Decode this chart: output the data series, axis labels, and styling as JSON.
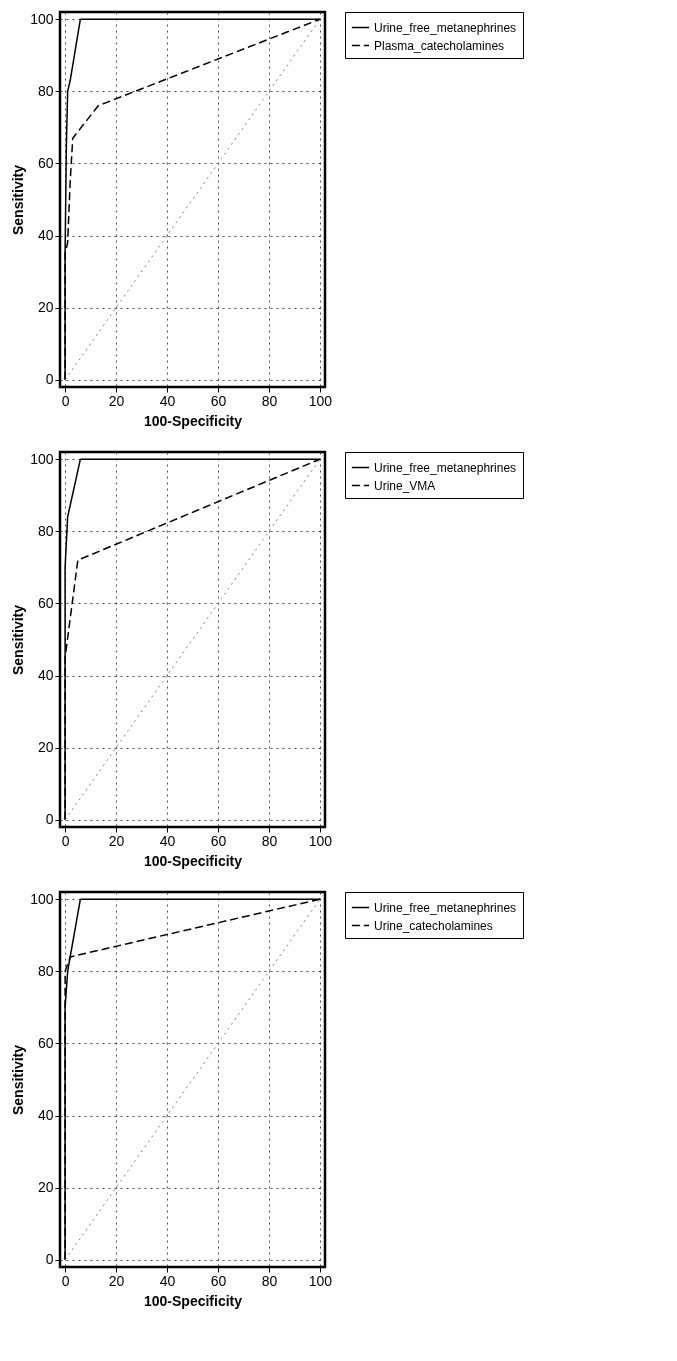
{
  "chart_data": [
    {
      "type": "line",
      "xlabel": "100-Specificity",
      "ylabel": "Sensitivity",
      "xlim": [
        -2,
        102
      ],
      "ylim": [
        -2,
        102
      ],
      "xticks": [
        0,
        20,
        40,
        60,
        80,
        100
      ],
      "yticks": [
        0,
        20,
        40,
        60,
        80,
        100
      ],
      "grid": true,
      "legend": "right",
      "series": [
        {
          "name": "Urine_free_metanephrines",
          "color": "#000000",
          "line_style": "solid",
          "x": [
            0,
            0,
            0.5,
            1,
            2,
            6,
            100
          ],
          "values": [
            0,
            35,
            65,
            80,
            83,
            100,
            100
          ]
        },
        {
          "name": "Plasma_catecholamines",
          "color": "#000000",
          "line_style": "dashed",
          "x": [
            0,
            0,
            1,
            2,
            3,
            13,
            100
          ],
          "values": [
            0,
            35,
            38,
            55,
            67,
            76,
            100
          ]
        },
        {
          "color": "#808080",
          "line_style": "dotted",
          "x": [
            0,
            100
          ],
          "values": [
            0,
            100
          ]
        }
      ]
    },
    {
      "type": "line",
      "xlabel": "100-Specificity",
      "ylabel": "Sensitivity",
      "xlim": [
        -2,
        102
      ],
      "ylim": [
        -2,
        102
      ],
      "xticks": [
        0,
        20,
        40,
        60,
        80,
        100
      ],
      "yticks": [
        0,
        20,
        40,
        60,
        80,
        100
      ],
      "grid": true,
      "legend": "right",
      "series": [
        {
          "name": "Urine_free_metanephrines",
          "color": "#000000",
          "line_style": "solid",
          "x": [
            0,
            0,
            1,
            6,
            100
          ],
          "values": [
            0,
            70,
            84,
            100,
            100
          ]
        },
        {
          "name": "Urine_VMA",
          "color": "#000000",
          "line_style": "dashed",
          "x": [
            0,
            0,
            5,
            100
          ],
          "values": [
            0,
            45,
            72,
            100
          ]
        },
        {
          "color": "#808080",
          "line_style": "dotted",
          "x": [
            0,
            100
          ],
          "values": [
            0,
            100
          ]
        }
      ]
    },
    {
      "type": "line",
      "xlabel": "100-Specificity",
      "ylabel": "Sensitivity",
      "xlim": [
        -2,
        102
      ],
      "ylim": [
        -2,
        102
      ],
      "xticks": [
        0,
        20,
        40,
        60,
        80,
        100
      ],
      "yticks": [
        0,
        20,
        40,
        60,
        80,
        100
      ],
      "grid": true,
      "legend": "right",
      "series": [
        {
          "name": "Urine_free_metanephrines",
          "color": "#000000",
          "line_style": "solid",
          "x": [
            0,
            0,
            1,
            2,
            6,
            100
          ],
          "values": [
            0,
            70,
            80,
            84,
            100,
            100
          ]
        },
        {
          "name": "Urine_catecholamines",
          "color": "#000000",
          "line_style": "dashed",
          "x": [
            0,
            0,
            2,
            100
          ],
          "values": [
            0,
            80,
            84,
            100
          ]
        },
        {
          "color": "#808080",
          "line_style": "dotted",
          "x": [
            0,
            100
          ],
          "values": [
            0,
            100
          ]
        }
      ]
    }
  ]
}
